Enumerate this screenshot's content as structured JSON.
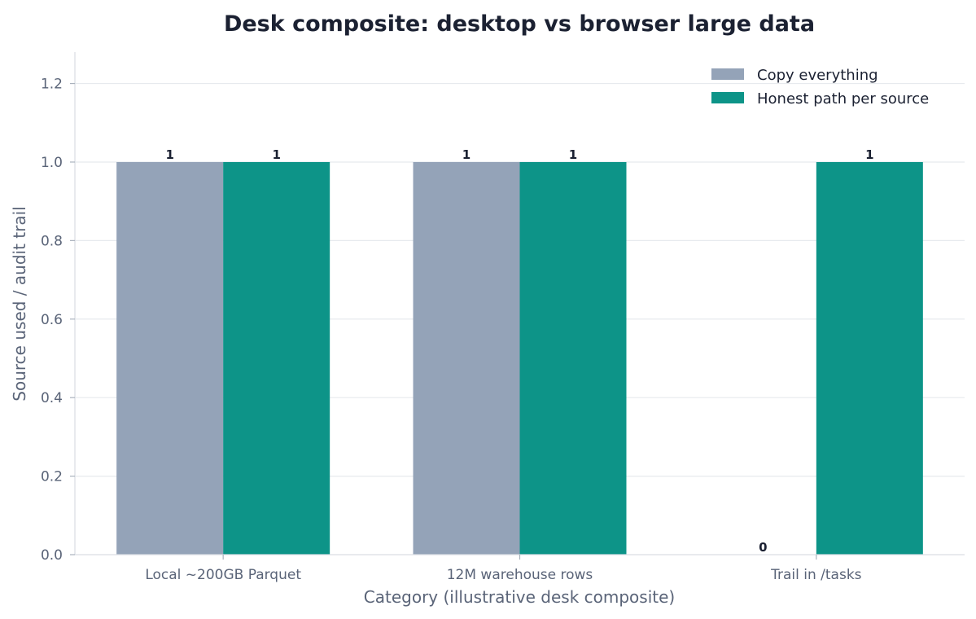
{
  "chart_data": {
    "type": "bar",
    "title": "Desk composite: desktop vs browser large data",
    "xlabel": "Category (illustrative desk composite)",
    "ylabel": "Source used / audit trail",
    "categories": [
      "Local ~200GB Parquet",
      "12M warehouse rows",
      "Trail in /tasks"
    ],
    "series": [
      {
        "name": "Copy everything",
        "values": [
          1,
          1,
          0
        ],
        "color": "#94a3b8"
      },
      {
        "name": "Honest path per source",
        "values": [
          1,
          1,
          1
        ],
        "color": "#0d9488"
      }
    ],
    "value_labels": [
      [
        "1",
        "1",
        "0"
      ],
      [
        "1",
        "1",
        "1"
      ]
    ],
    "ylim": [
      0,
      1.28
    ],
    "yticks": [
      "0.0",
      "0.2",
      "0.4",
      "0.6",
      "0.8",
      "1.0",
      "1.2"
    ],
    "grid": true,
    "legend_position": "top-right"
  }
}
